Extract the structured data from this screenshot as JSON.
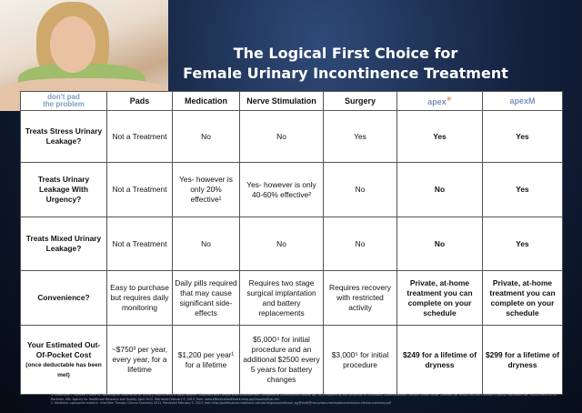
{
  "title": [
    "The Logical First Choice for",
    "Female Urinary Incontinence Treatment"
  ],
  "columns": {
    "logo": [
      "don't pad",
      "the problem"
    ],
    "pads": "Pads",
    "medication": "Medication",
    "nerve": "Nerve Stimulation",
    "surgery": "Surgery",
    "apex": "apex",
    "apexm": "apexM"
  },
  "rows": [
    {
      "label": "Treats Stress Urinary Leakage?",
      "cells": [
        "Not a Treatment",
        "No",
        "No",
        "Yes",
        "Yes",
        "Yes"
      ]
    },
    {
      "label": "Treats Urinary Leakage With Urgency?",
      "cells": [
        "Not a Treatment",
        "Yes- however is only 20% effective¹",
        "Yes- however is only 40-60% effective²",
        "No",
        "No",
        "Yes"
      ]
    },
    {
      "label": "Treats Mixed Urinary Leakage?",
      "cells": [
        "Not a Treatment",
        "No",
        "No",
        "No",
        "No",
        "Yes"
      ]
    },
    {
      "label": "Convenience?",
      "cells": [
        "Easy to purchase but requires daily monitoring",
        "Daily pills required that may cause significant side-effects",
        "Requires two stage surgical implantation and battery replacements",
        "Requires recovery with restricted activity",
        "Private, at-home treatment you can complete on your schedule",
        "Private, at-home treatment you can complete on your schedule"
      ]
    },
    {
      "label": "Your Estimated Out-Of-Pocket Cost",
      "note": "(once deductable has been met)",
      "cells": [
        "~$750³ per year, every year, for a lifetime",
        "$1,200 per year¹ for a lifetime",
        "$5,000⁴ for initial procedure and an additional $2500 every 5 years for battery changes",
        "$3,000⁵ for initial procedure",
        "$249 for a lifetime of dryness",
        "$299 for a lifetime of dryness"
      ]
    }
  ],
  "footnotes": [
    "1. Shamliyan T, Wyman J, Kane RL. Nonsurgical Treatments for Urinary Incontinence in Adult Women: Diagnosis and Comparative Effectiveness. Comparative Effectiveness Review No. 36. (Prepared by the University of Minnesota Evidence-based Practice Center under Contract No. HHSA 290-2007-10064-I.) AHRQ Publication No. 11(12)-EHC074- EF. Rockville, MD: Agency for Healthcare Research and Quality. April 2012. Retrieved February 5, 2013, from: www.effectivehealthcare.ahrq.gov/reports/final.cfm.",
    "2. Medtronic-sponsored research. InterStim Therapy Clinical Summary 2011. Retrieved February 5, 2013, from http://professional.medtronic.com/wcm/groups/mdtcom_sg/@mdt/@neuro/documents/documents/sns-clinical-summary.pdf"
  ]
}
